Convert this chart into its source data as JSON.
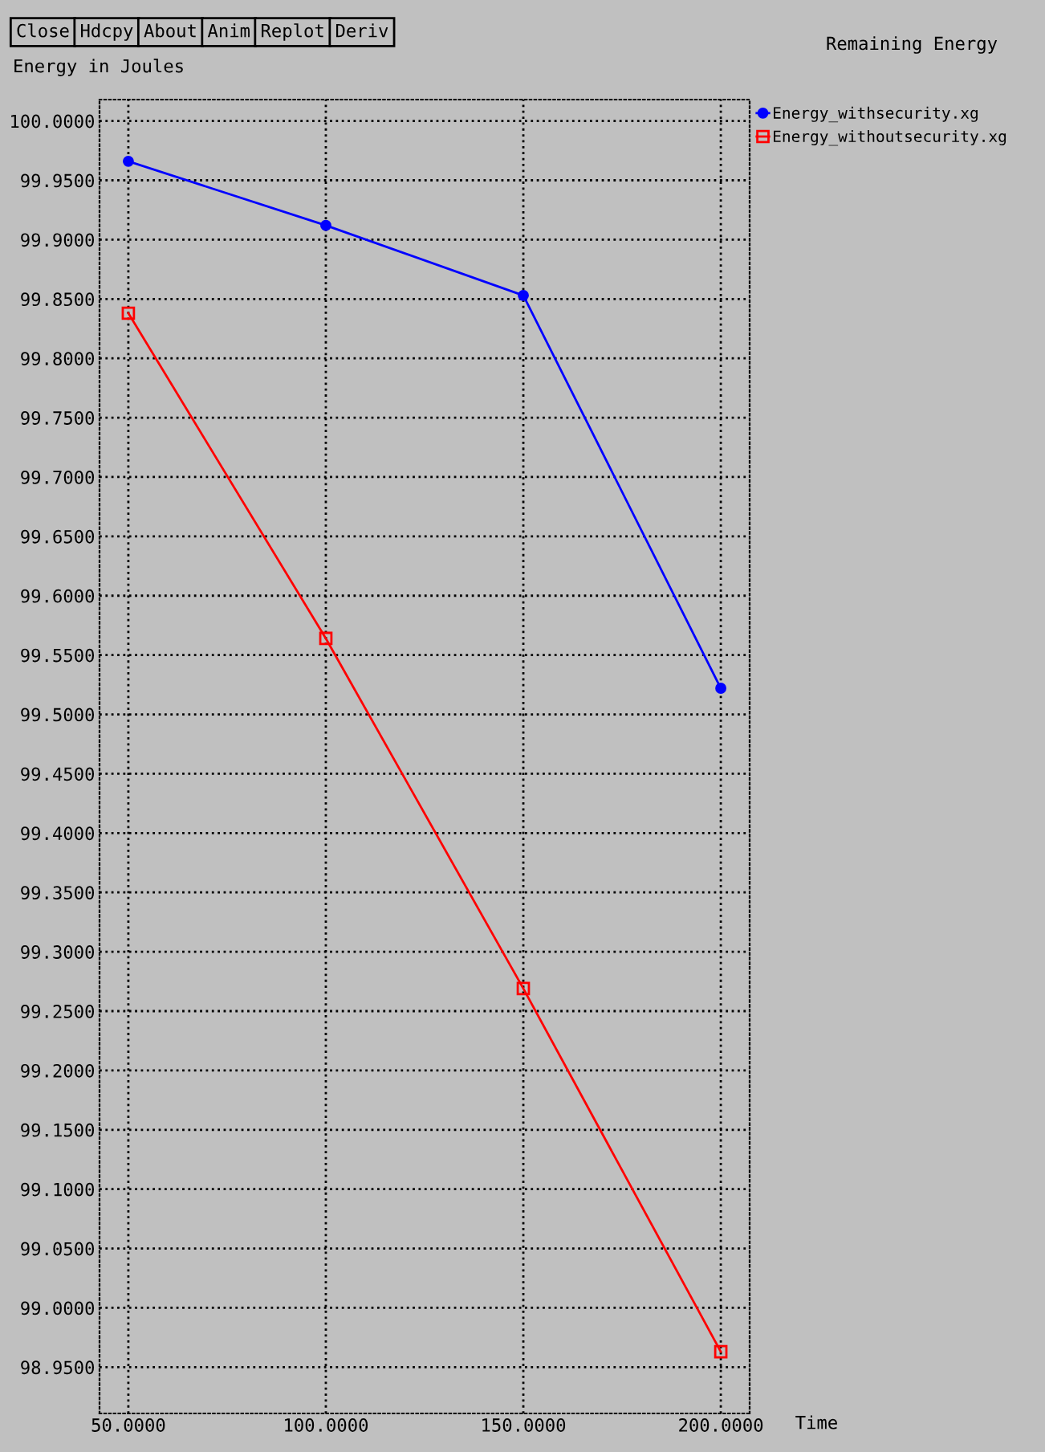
{
  "chart_data": {
    "type": "line",
    "title": "Remaining Energy",
    "ylabel": "Energy in Joules",
    "xlabel": "Time",
    "annotations": [
      "Close",
      "Hdcpy",
      "About",
      "Anim",
      "Replot",
      "Deriv"
    ],
    "x": [
      50,
      100,
      150,
      200
    ],
    "series": [
      {
        "name": "Energy_withsecurity.xg",
        "color": "#0000ff",
        "marker": "circle",
        "values": [
          99.966,
          99.912,
          99.853,
          99.522
        ]
      },
      {
        "name": "Energy_withoutsecurity.xg",
        "color": "#ff0000",
        "marker": "square",
        "values": [
          99.838,
          99.564,
          99.269,
          98.963
        ]
      }
    ],
    "xlim": [
      42.7,
      207.3
    ],
    "ylim": [
      98.911,
      100.018
    ],
    "xticks": [
      {
        "value": 50,
        "label": "50.0000"
      },
      {
        "value": 100,
        "label": "100.0000"
      },
      {
        "value": 150,
        "label": "150.0000"
      },
      {
        "value": 200,
        "label": "200.0000"
      }
    ],
    "yticks": [
      {
        "value": 98.95,
        "label": "98.9500"
      },
      {
        "value": 99.0,
        "label": "99.0000"
      },
      {
        "value": 99.05,
        "label": "99.0500"
      },
      {
        "value": 99.1,
        "label": "99.1000"
      },
      {
        "value": 99.15,
        "label": "99.1500"
      },
      {
        "value": 99.2,
        "label": "99.2000"
      },
      {
        "value": 99.25,
        "label": "99.2500"
      },
      {
        "value": 99.3,
        "label": "99.3000"
      },
      {
        "value": 99.35,
        "label": "99.3500"
      },
      {
        "value": 99.4,
        "label": "99.4000"
      },
      {
        "value": 99.45,
        "label": "99.4500"
      },
      {
        "value": 99.5,
        "label": "99.5000"
      },
      {
        "value": 99.55,
        "label": "99.5500"
      },
      {
        "value": 99.6,
        "label": "99.6000"
      },
      {
        "value": 99.65,
        "label": "99.6500"
      },
      {
        "value": 99.7,
        "label": "99.7000"
      },
      {
        "value": 99.75,
        "label": "99.7500"
      },
      {
        "value": 99.8,
        "label": "99.8000"
      },
      {
        "value": 99.85,
        "label": "99.8500"
      },
      {
        "value": 99.9,
        "label": "99.9000"
      },
      {
        "value": 99.95,
        "label": "99.9500"
      },
      {
        "value": 100.0,
        "label": "100.0000"
      }
    ],
    "grid": true,
    "legend": "right",
    "line_style": "solid"
  }
}
